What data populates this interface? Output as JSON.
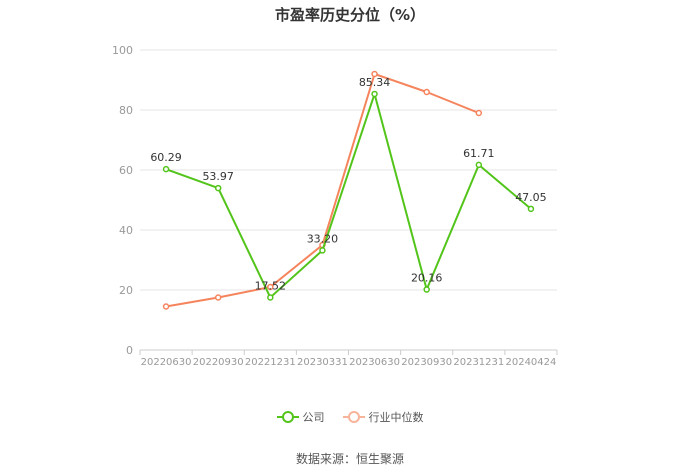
{
  "title": "市盈率历史分位（%）",
  "source": "数据来源：恒生聚源",
  "colors": {
    "company": "#52c41a",
    "industry": "#f5845c",
    "grid": "#e6e6e6",
    "axis_text": "#999999",
    "label_text": "#333333"
  },
  "chart_data": {
    "type": "line",
    "title": "市盈率历史分位（%）",
    "categories": [
      "20220630",
      "20220930",
      "20221231",
      "20230331",
      "20230630",
      "20230930",
      "20231231",
      "20240424"
    ],
    "ylim": [
      0,
      100
    ],
    "yticks": [
      0,
      20,
      40,
      60,
      80,
      100
    ],
    "grid": true,
    "legend_position": "bottom",
    "series": [
      {
        "name": "公司",
        "values": [
          60.29,
          53.97,
          17.52,
          33.2,
          85.34,
          20.16,
          61.71,
          47.05
        ],
        "labels": [
          "60.29",
          "53.97",
          "17.52",
          "33.20",
          "85.34",
          "20.16",
          "61.71",
          "47.05"
        ],
        "color": "#52c41a"
      },
      {
        "name": "行业中位数",
        "values": [
          14.5,
          17.5,
          21,
          35,
          92,
          86,
          79,
          null
        ],
        "color": "#f5845c"
      }
    ]
  }
}
